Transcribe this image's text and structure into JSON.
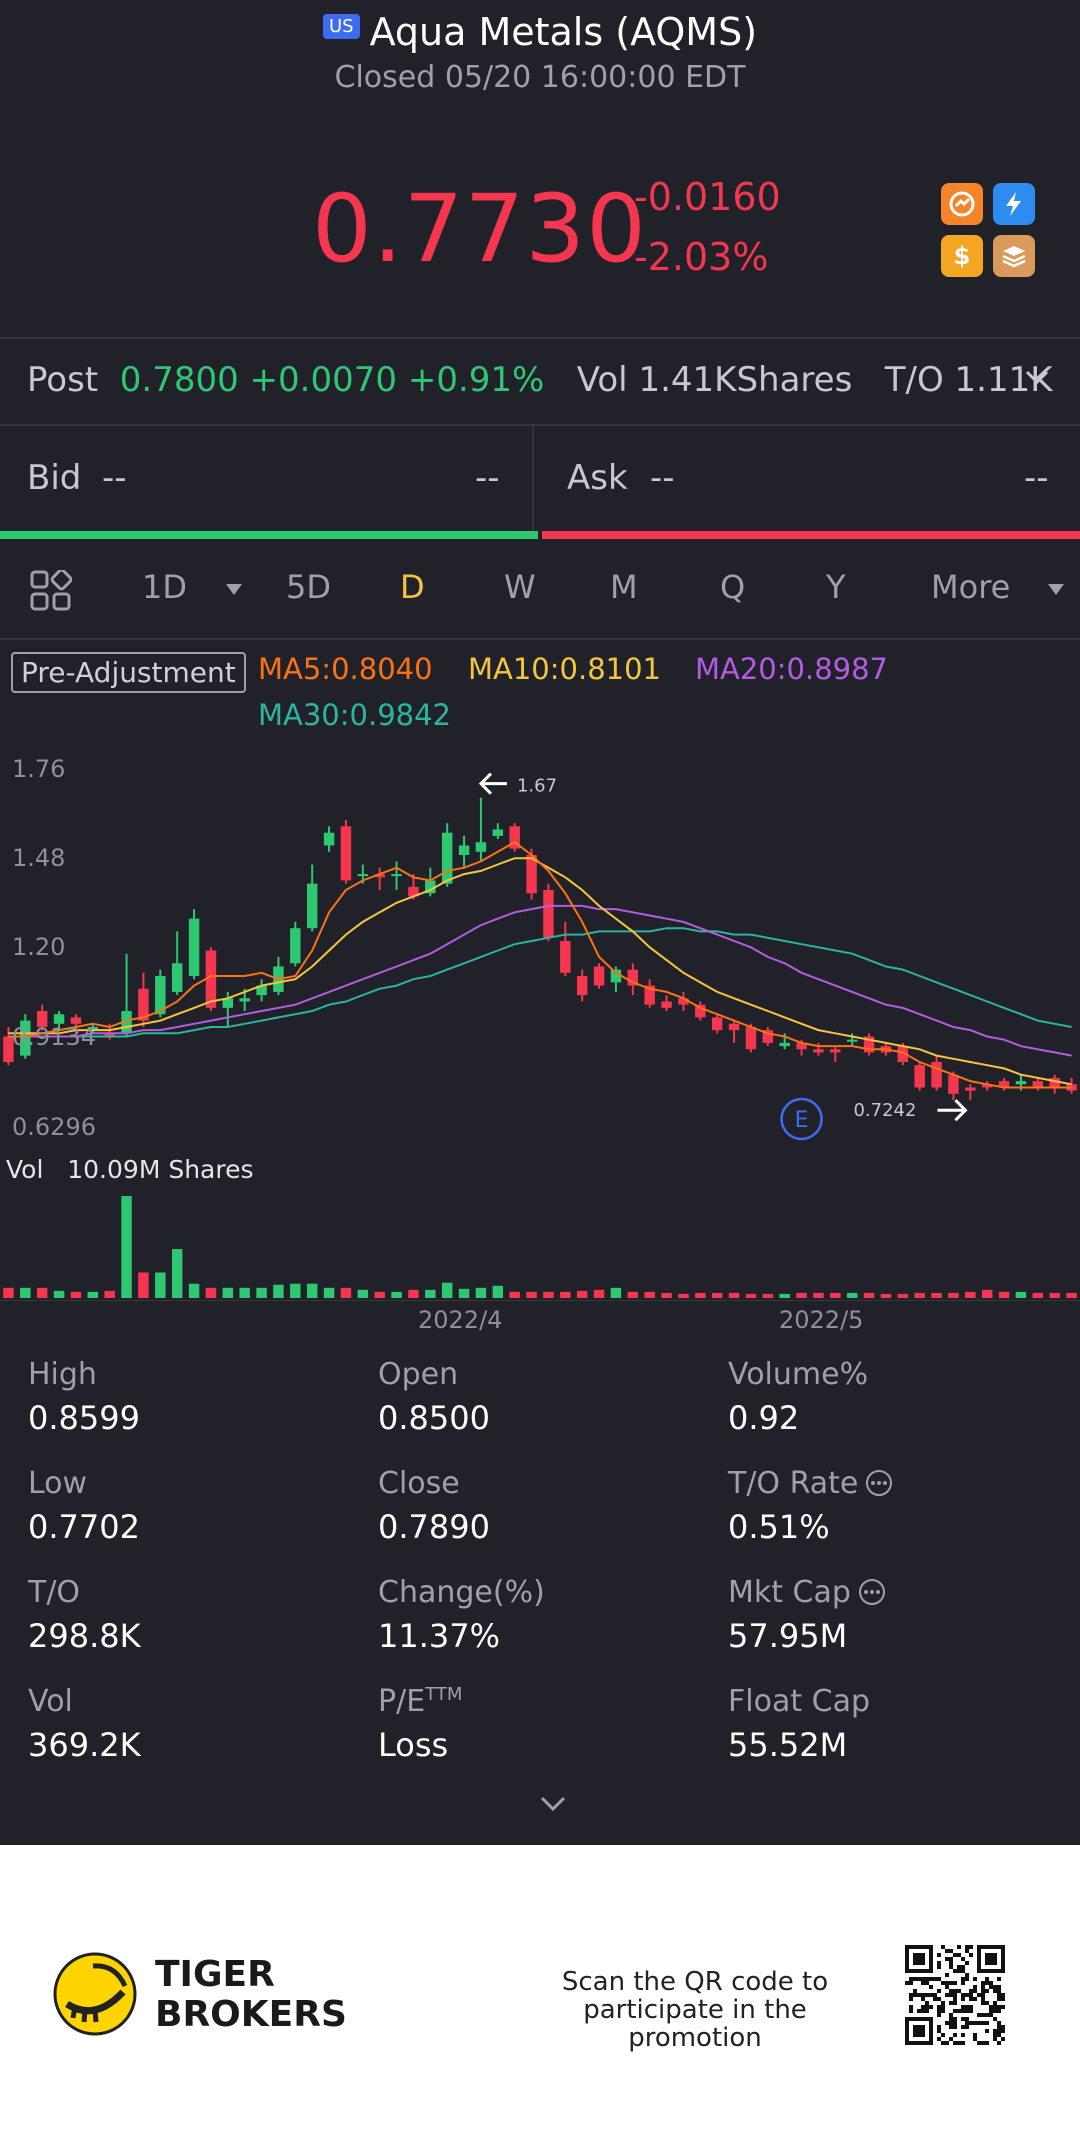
{
  "header": {
    "market_badge": "US",
    "title": "Aqua Metals (AQMS)",
    "status": "Closed 05/20 16:00:00 EDT",
    "price": "0.7730",
    "change": "-0.0160",
    "change_pct": "-2.03%"
  },
  "post": {
    "label": "Post",
    "price": "0.7800",
    "change": "+0.0070",
    "change_pct": "+0.91%",
    "vol_label": "Vol",
    "vol": "1.41KShares",
    "to_label": "T/O",
    "to": "1.11K"
  },
  "bidask": {
    "bid_label": "Bid",
    "bid_price": "--",
    "bid_size": "--",
    "ask_label": "Ask",
    "ask_price": "--",
    "ask_size": "--"
  },
  "tabs": [
    {
      "label": "1D"
    },
    {
      "label": "5D"
    },
    {
      "label": "D"
    },
    {
      "label": "W"
    },
    {
      "label": "M"
    },
    {
      "label": "Q"
    },
    {
      "label": "Y"
    },
    {
      "label": "More"
    }
  ],
  "active_tab": "D",
  "indicators": {
    "adjust": "Pre-Adjustment",
    "ma5": "MA5:0.8040",
    "ma10": "MA10:0.8101",
    "ma20": "MA20:0.8987",
    "ma30": "MA30:0.9842"
  },
  "colors": {
    "up": "#2fc872",
    "down": "#f5364f",
    "ma5": "#f97316",
    "ma10": "#f5c53d",
    "ma20": "#b45ce0",
    "ma30": "#2bb59e",
    "active_tab": "#f5c53d",
    "market_badge": "#3d6cf0"
  },
  "chart_data": {
    "type": "candlestick",
    "y_ticks": [
      "1.76",
      "1.48",
      "1.20",
      "0.9134",
      "0.6296"
    ],
    "ylim": [
      0.6296,
      1.76
    ],
    "x_ticks": [
      "2022/4",
      "2022/5"
    ],
    "annotations": {
      "high": "1.67",
      "low": "0.7242",
      "event_marker": "E"
    },
    "candles": [
      {
        "o": 0.92,
        "c": 0.84,
        "h": 0.95,
        "l": 0.83
      },
      {
        "o": 0.86,
        "c": 0.97,
        "h": 0.99,
        "l": 0.85
      },
      {
        "o": 1.0,
        "c": 0.95,
        "h": 1.02,
        "l": 0.94
      },
      {
        "o": 0.96,
        "c": 0.99,
        "h": 1.0,
        "l": 0.94
      },
      {
        "o": 0.98,
        "c": 0.96,
        "h": 0.99,
        "l": 0.93
      },
      {
        "o": 0.94,
        "c": 0.95,
        "h": 0.96,
        "l": 0.93
      },
      {
        "o": 0.93,
        "c": 0.92,
        "h": 0.96,
        "l": 0.91
      },
      {
        "o": 0.93,
        "c": 1.0,
        "h": 1.18,
        "l": 0.92
      },
      {
        "o": 1.07,
        "c": 0.97,
        "h": 1.12,
        "l": 0.95
      },
      {
        "o": 0.99,
        "c": 1.11,
        "h": 1.13,
        "l": 0.98
      },
      {
        "o": 1.06,
        "c": 1.15,
        "h": 1.25,
        "l": 1.05
      },
      {
        "o": 1.11,
        "c": 1.29,
        "h": 1.32,
        "l": 1.1
      },
      {
        "o": 1.19,
        "c": 1.01,
        "h": 1.2,
        "l": 1.0
      },
      {
        "o": 1.01,
        "c": 1.04,
        "h": 1.06,
        "l": 0.95
      },
      {
        "o": 1.03,
        "c": 1.04,
        "h": 1.07,
        "l": 1.0
      },
      {
        "o": 1.05,
        "c": 1.08,
        "h": 1.1,
        "l": 1.03
      },
      {
        "o": 1.06,
        "c": 1.14,
        "h": 1.17,
        "l": 1.05
      },
      {
        "o": 1.15,
        "c": 1.26,
        "h": 1.28,
        "l": 1.14
      },
      {
        "o": 1.26,
        "c": 1.4,
        "h": 1.46,
        "l": 1.25
      },
      {
        "o": 1.52,
        "c": 1.56,
        "h": 1.58,
        "l": 1.5
      },
      {
        "o": 1.58,
        "c": 1.41,
        "h": 1.6,
        "l": 1.4
      },
      {
        "o": 1.43,
        "c": 1.43,
        "h": 1.46,
        "l": 1.4
      },
      {
        "o": 1.43,
        "c": 1.42,
        "h": 1.45,
        "l": 1.38
      },
      {
        "o": 1.43,
        "c": 1.43,
        "h": 1.47,
        "l": 1.38
      },
      {
        "o": 1.39,
        "c": 1.36,
        "h": 1.43,
        "l": 1.35
      },
      {
        "o": 1.37,
        "c": 1.41,
        "h": 1.45,
        "l": 1.36
      },
      {
        "o": 1.4,
        "c": 1.56,
        "h": 1.59,
        "l": 1.39
      },
      {
        "o": 1.49,
        "c": 1.52,
        "h": 1.55,
        "l": 1.45
      },
      {
        "o": 1.5,
        "c": 1.53,
        "h": 1.67,
        "l": 1.47
      },
      {
        "o": 1.55,
        "c": 1.57,
        "h": 1.59,
        "l": 1.54
      },
      {
        "o": 1.58,
        "c": 1.51,
        "h": 1.59,
        "l": 1.5
      },
      {
        "o": 1.49,
        "c": 1.37,
        "h": 1.51,
        "l": 1.35
      },
      {
        "o": 1.38,
        "c": 1.23,
        "h": 1.4,
        "l": 1.22
      },
      {
        "o": 1.22,
        "c": 1.12,
        "h": 1.28,
        "l": 1.11
      },
      {
        "o": 1.11,
        "c": 1.05,
        "h": 1.13,
        "l": 1.03
      },
      {
        "o": 1.14,
        "c": 1.08,
        "h": 1.15,
        "l": 1.07
      },
      {
        "o": 1.09,
        "c": 1.13,
        "h": 1.14,
        "l": 1.06
      },
      {
        "o": 1.13,
        "c": 1.08,
        "h": 1.15,
        "l": 1.05
      },
      {
        "o": 1.08,
        "c": 1.02,
        "h": 1.1,
        "l": 1.01
      },
      {
        "o": 1.03,
        "c": 1.01,
        "h": 1.05,
        "l": 1.0
      },
      {
        "o": 1.04,
        "c": 1.02,
        "h": 1.06,
        "l": 1.0
      },
      {
        "o": 1.02,
        "c": 0.98,
        "h": 1.03,
        "l": 0.97
      },
      {
        "o": 0.98,
        "c": 0.94,
        "h": 0.99,
        "l": 0.93
      },
      {
        "o": 0.96,
        "c": 0.94,
        "h": 0.97,
        "l": 0.9
      },
      {
        "o": 0.95,
        "c": 0.88,
        "h": 0.96,
        "l": 0.87
      },
      {
        "o": 0.94,
        "c": 0.9,
        "h": 0.95,
        "l": 0.89
      },
      {
        "o": 0.89,
        "c": 0.9,
        "h": 0.93,
        "l": 0.88
      },
      {
        "o": 0.9,
        "c": 0.88,
        "h": 0.91,
        "l": 0.86
      },
      {
        "o": 0.88,
        "c": 0.87,
        "h": 0.9,
        "l": 0.86
      },
      {
        "o": 0.88,
        "c": 0.87,
        "h": 0.89,
        "l": 0.84
      },
      {
        "o": 0.91,
        "c": 0.91,
        "h": 0.93,
        "l": 0.89
      },
      {
        "o": 0.92,
        "c": 0.87,
        "h": 0.93,
        "l": 0.86
      },
      {
        "o": 0.89,
        "c": 0.87,
        "h": 0.9,
        "l": 0.86
      },
      {
        "o": 0.89,
        "c": 0.84,
        "h": 0.9,
        "l": 0.83
      },
      {
        "o": 0.83,
        "c": 0.76,
        "h": 0.84,
        "l": 0.75
      },
      {
        "o": 0.84,
        "c": 0.76,
        "h": 0.86,
        "l": 0.75
      },
      {
        "o": 0.8,
        "c": 0.74,
        "h": 0.81,
        "l": 0.72
      },
      {
        "o": 0.76,
        "c": 0.75,
        "h": 0.77,
        "l": 0.72
      },
      {
        "o": 0.77,
        "c": 0.76,
        "h": 0.78,
        "l": 0.75
      },
      {
        "o": 0.78,
        "c": 0.76,
        "h": 0.79,
        "l": 0.75
      },
      {
        "o": 0.77,
        "c": 0.78,
        "h": 0.8,
        "l": 0.75
      },
      {
        "o": 0.78,
        "c": 0.76,
        "h": 0.79,
        "l": 0.75
      },
      {
        "o": 0.79,
        "c": 0.76,
        "h": 0.8,
        "l": 0.74
      },
      {
        "o": 0.77,
        "c": 0.75,
        "h": 0.79,
        "l": 0.74
      }
    ],
    "ma5": [
      0.92,
      0.92,
      0.93,
      0.94,
      0.95,
      0.96,
      0.95,
      0.97,
      0.98,
      1.0,
      1.03,
      1.08,
      1.11,
      1.11,
      1.11,
      1.12,
      1.1,
      1.11,
      1.19,
      1.31,
      1.38,
      1.41,
      1.43,
      1.45,
      1.42,
      1.41,
      1.44,
      1.45,
      1.47,
      1.5,
      1.53,
      1.49,
      1.44,
      1.37,
      1.28,
      1.17,
      1.12,
      1.09,
      1.07,
      1.06,
      1.04,
      1.01,
      0.99,
      0.97,
      0.95,
      0.93,
      0.92,
      0.9,
      0.89,
      0.89,
      0.89,
      0.88,
      0.88,
      0.87,
      0.84,
      0.82,
      0.8,
      0.78,
      0.77,
      0.76,
      0.76,
      0.76,
      0.76,
      0.76
    ],
    "ma10": [
      0.93,
      0.93,
      0.93,
      0.93,
      0.94,
      0.94,
      0.94,
      0.95,
      0.96,
      0.97,
      0.99,
      1.01,
      1.03,
      1.04,
      1.06,
      1.08,
      1.09,
      1.1,
      1.14,
      1.19,
      1.24,
      1.28,
      1.31,
      1.34,
      1.36,
      1.38,
      1.41,
      1.43,
      1.44,
      1.46,
      1.48,
      1.48,
      1.45,
      1.42,
      1.38,
      1.33,
      1.29,
      1.25,
      1.2,
      1.16,
      1.12,
      1.09,
      1.06,
      1.04,
      1.02,
      1.0,
      0.98,
      0.96,
      0.94,
      0.93,
      0.92,
      0.91,
      0.9,
      0.89,
      0.88,
      0.86,
      0.85,
      0.84,
      0.83,
      0.82,
      0.8,
      0.79,
      0.78,
      0.77
    ],
    "ma20": [
      0.92,
      0.92,
      0.92,
      0.92,
      0.92,
      0.93,
      0.93,
      0.93,
      0.94,
      0.94,
      0.95,
      0.96,
      0.97,
      0.98,
      0.99,
      1.0,
      1.01,
      1.02,
      1.04,
      1.06,
      1.08,
      1.1,
      1.12,
      1.14,
      1.16,
      1.18,
      1.21,
      1.24,
      1.27,
      1.29,
      1.31,
      1.32,
      1.33,
      1.33,
      1.33,
      1.32,
      1.32,
      1.31,
      1.3,
      1.29,
      1.28,
      1.26,
      1.24,
      1.22,
      1.2,
      1.17,
      1.15,
      1.12,
      1.1,
      1.08,
      1.06,
      1.04,
      1.02,
      1.01,
      0.99,
      0.97,
      0.95,
      0.94,
      0.92,
      0.91,
      0.89,
      0.88,
      0.87,
      0.86
    ],
    "ma30": [
      0.92,
      0.92,
      0.92,
      0.92,
      0.92,
      0.92,
      0.92,
      0.92,
      0.93,
      0.93,
      0.93,
      0.94,
      0.95,
      0.95,
      0.96,
      0.97,
      0.98,
      0.99,
      1.0,
      1.02,
      1.03,
      1.05,
      1.07,
      1.08,
      1.1,
      1.11,
      1.13,
      1.15,
      1.17,
      1.19,
      1.21,
      1.22,
      1.23,
      1.24,
      1.24,
      1.25,
      1.25,
      1.25,
      1.25,
      1.26,
      1.26,
      1.25,
      1.25,
      1.24,
      1.24,
      1.23,
      1.22,
      1.21,
      1.2,
      1.19,
      1.18,
      1.16,
      1.14,
      1.13,
      1.11,
      1.09,
      1.07,
      1.05,
      1.03,
      1.01,
      0.99,
      0.97,
      0.96,
      0.95
    ],
    "volume": {
      "label": "Vol",
      "value": "10.09M Shares",
      "bars": [
        0.1,
        0.1,
        0.1,
        0.07,
        0.06,
        0.06,
        0.07,
        1.0,
        0.25,
        0.25,
        0.48,
        0.14,
        0.1,
        0.1,
        0.1,
        0.1,
        0.13,
        0.14,
        0.14,
        0.1,
        0.1,
        0.08,
        0.06,
        0.06,
        0.08,
        0.08,
        0.15,
        0.09,
        0.1,
        0.12,
        0.06,
        0.06,
        0.06,
        0.06,
        0.07,
        0.08,
        0.1,
        0.06,
        0.06,
        0.05,
        0.04,
        0.05,
        0.05,
        0.05,
        0.04,
        0.04,
        0.04,
        0.05,
        0.05,
        0.05,
        0.05,
        0.05,
        0.04,
        0.04,
        0.05,
        0.05,
        0.05,
        0.06,
        0.08,
        0.06,
        0.06,
        0.05,
        0.05,
        0.05
      ]
    }
  },
  "stats": [
    {
      "label": "High",
      "value": "0.8599"
    },
    {
      "label": "Open",
      "value": "0.8500"
    },
    {
      "label": "Volume%",
      "value": "0.92"
    },
    {
      "label": "Low",
      "value": "0.7702"
    },
    {
      "label": "Close",
      "value": "0.7890"
    },
    {
      "label": "T/O Rate",
      "value": "0.51%"
    },
    {
      "label": "T/O",
      "value": "298.8K"
    },
    {
      "label": "Change(%)",
      "value": "11.37%"
    },
    {
      "label": "Mkt Cap",
      "value": "57.95M"
    },
    {
      "label": "Vol",
      "value": "369.2K"
    },
    {
      "label": "P/E",
      "value": "Loss",
      "sup": "TTM"
    },
    {
      "label": "Float Cap",
      "value": "55.52M"
    }
  ],
  "footer": {
    "brand_line1": "TIGER",
    "brand_line2": "BROKERS",
    "promo_line1": "Scan the QR code to",
    "promo_line2": "participate in the promotion"
  }
}
